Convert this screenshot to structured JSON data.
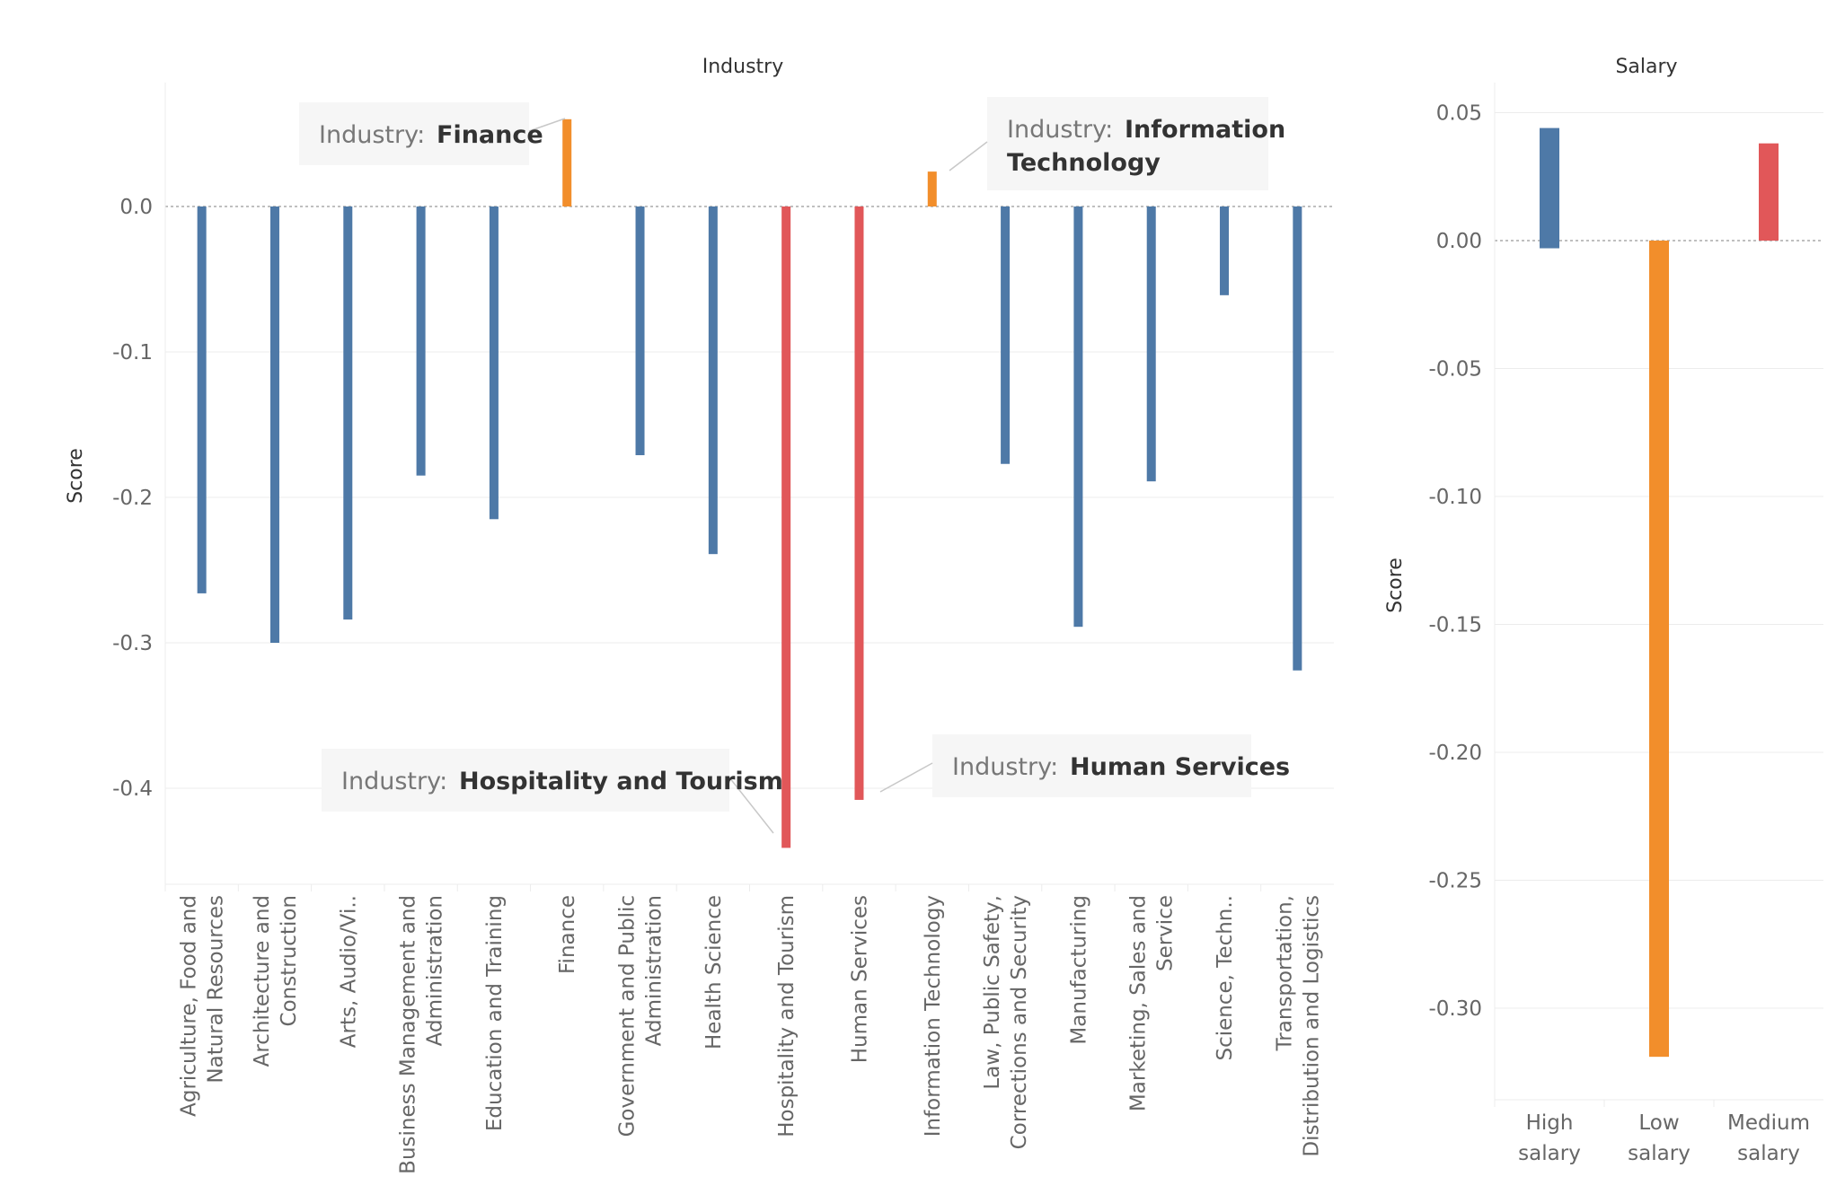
{
  "chart_data": [
    {
      "type": "bar",
      "title": "Industry",
      "ylabel": "Score",
      "xlabel": "",
      "ylim": [
        -0.465,
        0.085
      ],
      "yticks": [
        0.0,
        -0.1,
        -0.2,
        -0.3,
        -0.4
      ],
      "ytick_labels": [
        "0.0",
        "-0.1",
        "-0.2",
        "-0.3",
        "-0.4"
      ],
      "grid": true,
      "categories": [
        [
          "Agriculture, Food and",
          "Natural Resources"
        ],
        [
          "Architecture and",
          "Construction"
        ],
        [
          "Arts, Audio/Vi.."
        ],
        [
          "Business Management and",
          "Administration"
        ],
        [
          "Education and Training"
        ],
        [
          "Finance"
        ],
        [
          "Government and Public",
          "Administration"
        ],
        [
          "Health Science"
        ],
        [
          "Hospitality and Tourism"
        ],
        [
          "Human Services"
        ],
        [
          "Information Technology"
        ],
        [
          "Law, Public Safety,",
          "Corrections and Security"
        ],
        [
          "Manufacturing"
        ],
        [
          "Marketing, Sales and",
          "Service"
        ],
        [
          "Science, Techn.."
        ],
        [
          "Transportation,",
          "Distribution and Logistics"
        ]
      ],
      "values": [
        -0.266,
        -0.3,
        -0.284,
        -0.185,
        -0.215,
        0.06,
        -0.171,
        -0.239,
        -0.441,
        -0.408,
        0.024,
        -0.177,
        -0.289,
        -0.189,
        -0.061,
        -0.319
      ],
      "colors": [
        "#4e79a7",
        "#4e79a7",
        "#4e79a7",
        "#4e79a7",
        "#4e79a7",
        "#f28e2b",
        "#4e79a7",
        "#4e79a7",
        "#e15759",
        "#e15759",
        "#f28e2b",
        "#4e79a7",
        "#4e79a7",
        "#4e79a7",
        "#4e79a7",
        "#4e79a7"
      ],
      "annotations": [
        {
          "label": "Industry:",
          "value": [
            "Finance"
          ],
          "category_index": 5,
          "anchor": "top-left"
        },
        {
          "label": "Industry:",
          "value": [
            "Information",
            "Technology"
          ],
          "category_index": 10,
          "anchor": "top-right"
        },
        {
          "label": "Industry:",
          "value": [
            "Hospitality and Tourism"
          ],
          "category_index": 8,
          "anchor": "bottom-left"
        },
        {
          "label": "Industry:",
          "value": [
            "Human Services"
          ],
          "category_index": 9,
          "anchor": "bottom-right"
        }
      ]
    },
    {
      "type": "bar",
      "title": "Salary",
      "ylabel": "Score",
      "xlabel": "",
      "ylim": [
        -0.335,
        0.06
      ],
      "yticks": [
        0.05,
        0.0,
        -0.05,
        -0.1,
        -0.15,
        -0.2,
        -0.25,
        -0.3
      ],
      "ytick_labels": [
        "0.05",
        "0.00",
        "-0.05",
        "-0.10",
        "-0.15",
        "-0.20",
        "-0.25",
        "-0.30"
      ],
      "grid": true,
      "categories": [
        [
          "High",
          "salary"
        ],
        [
          "Low",
          "salary"
        ],
        [
          "Medium",
          "salary"
        ]
      ],
      "values": [
        [
          -0.003,
          0.044
        ],
        [
          -0.319,
          0.0
        ],
        [
          0.0,
          0.038
        ]
      ],
      "colors": [
        "#4e79a7",
        "#f28e2b",
        "#e15759"
      ]
    }
  ]
}
